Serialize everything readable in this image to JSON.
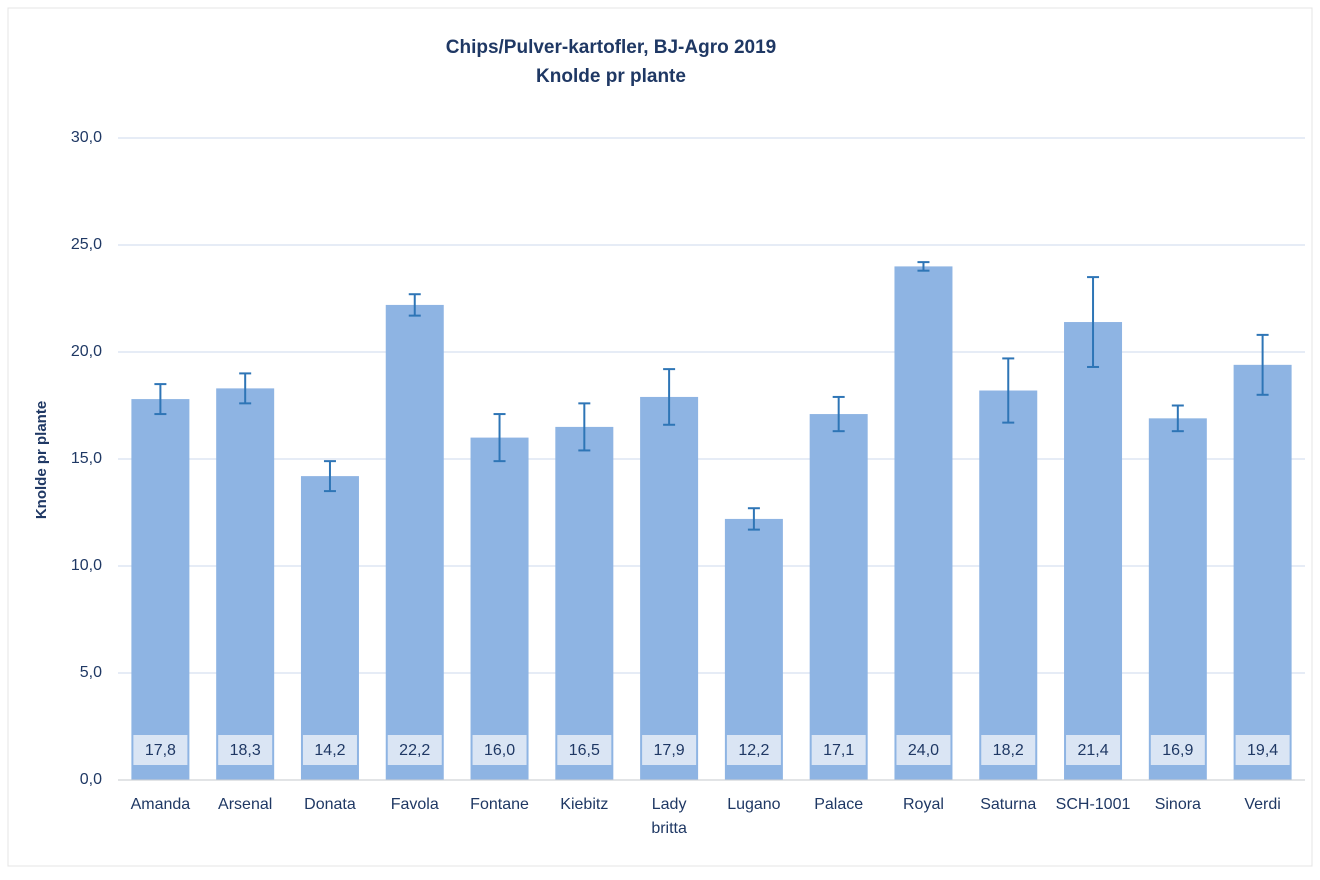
{
  "chart_data": {
    "type": "bar",
    "title": "Chips/Pulver-kartofler, BJ-Agro 2019",
    "subtitle": "Knolde pr plante",
    "y_label": "Knolde pr plante",
    "categories": [
      "Amanda",
      "Arsenal",
      "Donata",
      "Favola",
      "Fontane",
      "Kiebitz",
      "Lady britta",
      "Lugano",
      "Palace",
      "Royal",
      "Saturna",
      "SCH-1001",
      "Sinora",
      "Verdi"
    ],
    "values": [
      17.8,
      18.3,
      14.2,
      22.2,
      16.0,
      16.5,
      17.9,
      12.2,
      17.1,
      24.0,
      18.2,
      21.4,
      16.9,
      19.4
    ],
    "value_labels": [
      "17,8",
      "18,3",
      "14,2",
      "22,2",
      "16,0",
      "16,5",
      "17,9",
      "12,2",
      "17,1",
      "24,0",
      "18,2",
      "21,4",
      "16,9",
      "19,4"
    ],
    "errors": [
      0.7,
      0.7,
      0.7,
      0.5,
      1.1,
      1.1,
      1.3,
      0.5,
      0.8,
      0.2,
      1.5,
      2.1,
      0.6,
      1.4
    ],
    "color": "#8eb4e3",
    "error_color": "#2e75b6",
    "ylim": [
      0,
      30
    ],
    "yticks": [
      {
        "value": 0,
        "label": "0,0"
      },
      {
        "value": 5,
        "label": "5,0"
      },
      {
        "value": 10,
        "label": "10,0"
      },
      {
        "value": 15,
        "label": "15,0"
      },
      {
        "value": 20,
        "label": "20,0"
      },
      {
        "value": 25,
        "label": "25,0"
      },
      {
        "value": 30,
        "label": "30,0"
      }
    ],
    "grid": true
  }
}
